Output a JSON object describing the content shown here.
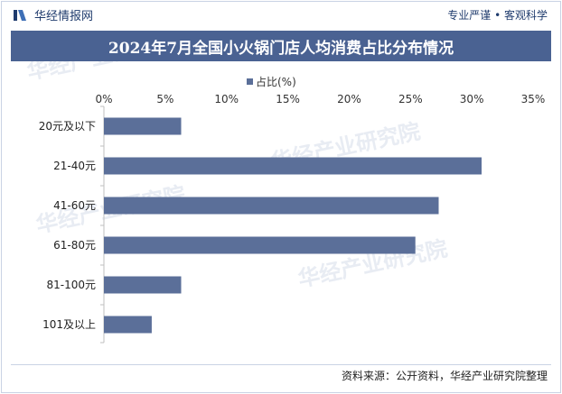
{
  "header": {
    "brand": "华经情报网",
    "slogan": "专业严谨 • 客观科学"
  },
  "title": "2024年7月全国小火锅门店人均消费占比分布情况",
  "source": "资料来源：公开资料，华经产业研究院整理",
  "watermark": "华经产业研究院",
  "colors": {
    "bar": "#5b6f99",
    "title_bg": "#4a6292",
    "brand": "#1f3b6d"
  },
  "chart_data": {
    "type": "bar",
    "orientation": "horizontal",
    "legend": "占比(%)",
    "legend_position": "top",
    "categories": [
      "20元及以下",
      "21-40元",
      "41-60元",
      "61-80元",
      "81-100元",
      "101及以上"
    ],
    "values": [
      6.3,
      30.8,
      27.3,
      25.4,
      6.3,
      3.9
    ],
    "x_ticks": [
      "0%",
      "5%",
      "10%",
      "15%",
      "20%",
      "25%",
      "30%",
      "35%"
    ],
    "xlim": [
      0,
      35
    ],
    "grid": false
  }
}
